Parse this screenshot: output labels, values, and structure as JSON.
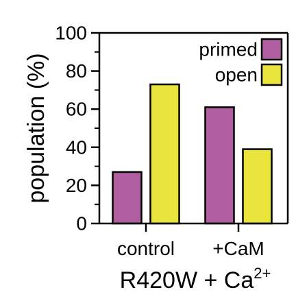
{
  "chart_data": {
    "type": "bar",
    "categories": [
      "control",
      "+CaM"
    ],
    "series": [
      {
        "name": "primed",
        "color": "#b05e9f",
        "values": [
          27,
          61
        ]
      },
      {
        "name": "open",
        "color": "#e8e43c",
        "values": [
          73,
          39
        ]
      }
    ],
    "ylabel": "population (%)",
    "xlabel_main": "R420W + Ca",
    "xlabel_superscript": "2+",
    "ylim": [
      0,
      100
    ],
    "yticks": [
      "0",
      "20",
      "40",
      "60",
      "80",
      "100"
    ],
    "legend_position": "top-right",
    "grid": false
  }
}
